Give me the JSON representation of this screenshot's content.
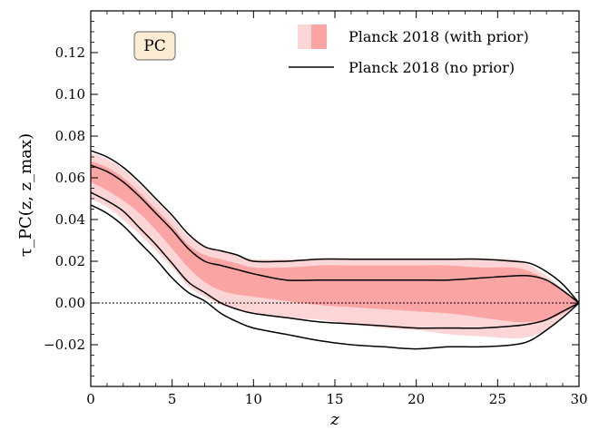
{
  "chart_data": {
    "type": "area",
    "title": "",
    "xlabel": "z",
    "ylabel": "τ_PC(z, z_max)",
    "xlim": [
      0,
      30
    ],
    "ylim": [
      -0.04,
      0.14
    ],
    "x_ticks": [
      0,
      5,
      10,
      15,
      20,
      25,
      30
    ],
    "x_tick_labels": [
      "0",
      "5",
      "10",
      "15",
      "20",
      "25",
      "30"
    ],
    "y_ticks": [
      -0.02,
      0.0,
      0.02,
      0.04,
      0.06,
      0.08,
      0.1,
      0.12
    ],
    "y_tick_labels": [
      "−0.02",
      "0.00",
      "0.02",
      "0.04",
      "0.06",
      "0.08",
      "0.10",
      "0.12"
    ],
    "grid": false,
    "reference_line": {
      "y": 0,
      "style": "dotted"
    },
    "badge_label": "PC",
    "legend_position": "top-right",
    "legend": [
      {
        "label": "Planck 2018 (with prior)",
        "kind": "band"
      },
      {
        "label": "Planck 2018 (no prior)",
        "kind": "line"
      }
    ],
    "colors": {
      "band_outer": "#fcd6d6",
      "band_inner": "#fba4a4",
      "line": "#000000",
      "badge_fill": "#fbecd3",
      "badge_border": "#808080"
    },
    "x": [
      0,
      1,
      2,
      3,
      4,
      5,
      6,
      7,
      8,
      9,
      10,
      12,
      14,
      16,
      18,
      20,
      22,
      24,
      26,
      27,
      28,
      29,
      30
    ],
    "series": [
      {
        "role": "with_prior_outer_upper",
        "values": [
          0.072,
          0.069,
          0.064,
          0.057,
          0.049,
          0.041,
          0.032,
          0.027,
          0.025,
          0.023,
          0.021,
          0.021,
          0.021,
          0.021,
          0.021,
          0.021,
          0.021,
          0.021,
          0.021,
          0.018,
          0.013,
          0.007,
          0.0
        ]
      },
      {
        "role": "with_prior_inner_upper",
        "values": [
          0.068,
          0.065,
          0.06,
          0.053,
          0.045,
          0.037,
          0.028,
          0.023,
          0.021,
          0.019,
          0.017,
          0.017,
          0.018,
          0.018,
          0.018,
          0.018,
          0.018,
          0.017,
          0.017,
          0.015,
          0.011,
          0.006,
          0.0
        ]
      },
      {
        "role": "with_prior_inner_lower",
        "values": [
          0.058,
          0.054,
          0.049,
          0.043,
          0.035,
          0.026,
          0.017,
          0.01,
          0.006,
          0.004,
          0.003,
          0.001,
          -0.001,
          -0.002,
          -0.003,
          -0.004,
          -0.005,
          -0.007,
          -0.009,
          -0.009,
          -0.008,
          -0.005,
          0.0
        ]
      },
      {
        "role": "with_prior_outer_lower",
        "values": [
          0.05,
          0.046,
          0.04,
          0.033,
          0.025,
          0.017,
          0.008,
          0.003,
          -0.001,
          -0.003,
          -0.005,
          -0.007,
          -0.008,
          -0.01,
          -0.012,
          -0.013,
          -0.015,
          -0.016,
          -0.017,
          -0.016,
          -0.013,
          -0.007,
          0.0
        ]
      },
      {
        "role": "no_prior_upper",
        "values": [
          0.073,
          0.07,
          0.065,
          0.058,
          0.05,
          0.042,
          0.033,
          0.027,
          0.025,
          0.023,
          0.02,
          0.02,
          0.021,
          0.021,
          0.021,
          0.021,
          0.021,
          0.021,
          0.02,
          0.019,
          0.015,
          0.009,
          0.0
        ]
      },
      {
        "role": "no_prior_mid_upper",
        "values": [
          0.066,
          0.063,
          0.058,
          0.051,
          0.043,
          0.035,
          0.026,
          0.02,
          0.018,
          0.016,
          0.014,
          0.011,
          0.011,
          0.011,
          0.011,
          0.011,
          0.011,
          0.012,
          0.013,
          0.013,
          0.011,
          0.006,
          0.0
        ]
      },
      {
        "role": "no_prior_mid_lower",
        "values": [
          0.053,
          0.049,
          0.044,
          0.036,
          0.028,
          0.019,
          0.01,
          0.005,
          0.0,
          -0.003,
          -0.005,
          -0.007,
          -0.009,
          -0.01,
          -0.011,
          -0.012,
          -0.012,
          -0.012,
          -0.011,
          -0.01,
          -0.008,
          -0.004,
          0.0
        ]
      },
      {
        "role": "no_prior_lower",
        "values": [
          0.047,
          0.043,
          0.037,
          0.029,
          0.021,
          0.012,
          0.005,
          0.001,
          -0.005,
          -0.009,
          -0.012,
          -0.015,
          -0.018,
          -0.02,
          -0.021,
          -0.022,
          -0.021,
          -0.021,
          -0.02,
          -0.018,
          -0.013,
          -0.007,
          0.0
        ]
      }
    ]
  }
}
